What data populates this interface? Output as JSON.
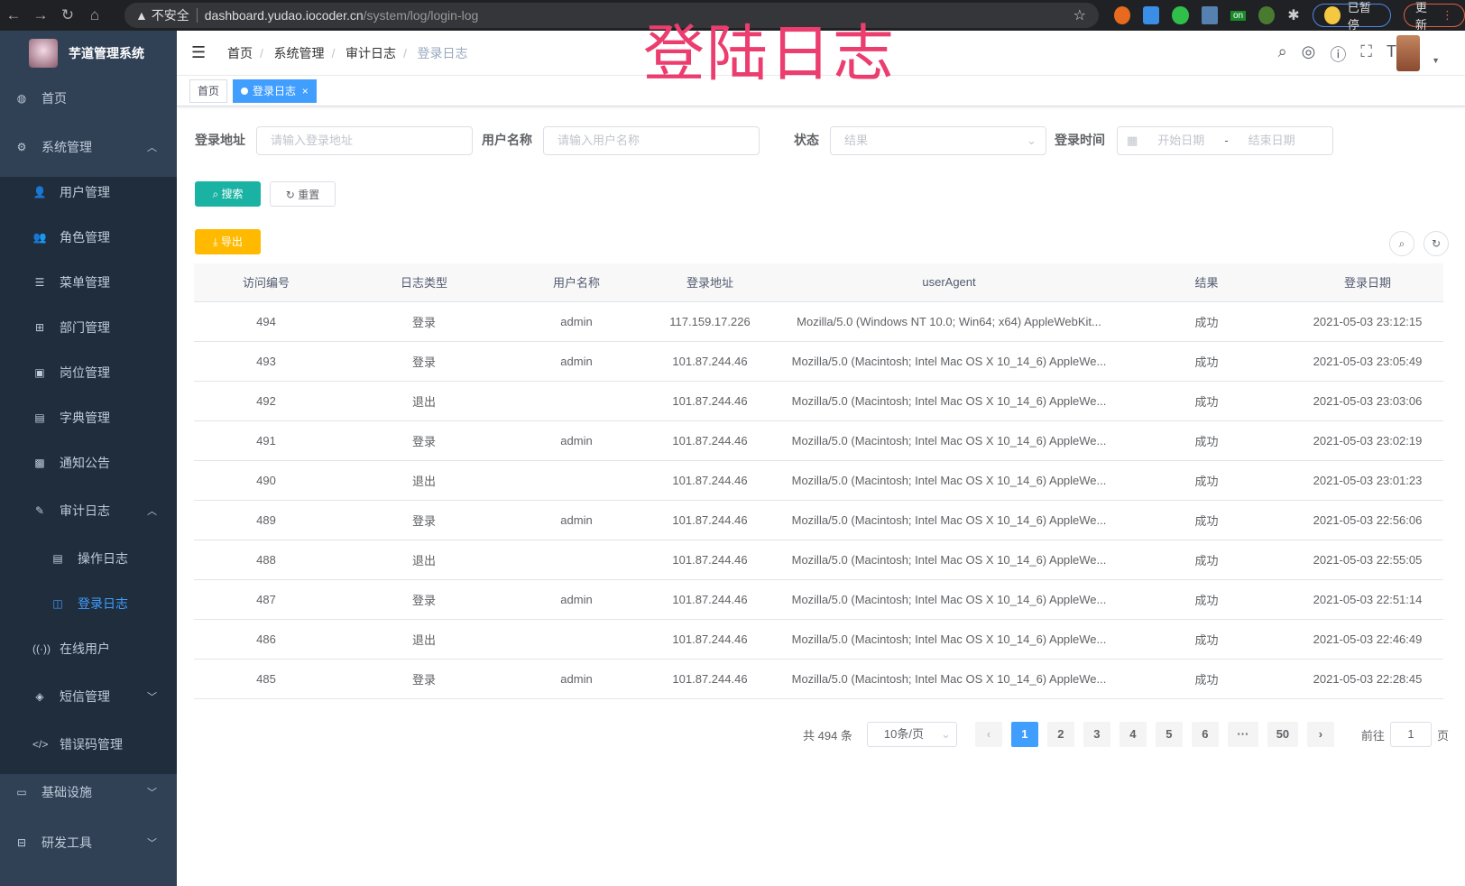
{
  "browser": {
    "warning": "不安全",
    "url_host": "dashboard.yudao.iocoder.cn",
    "url_path": "/system/log/login-log",
    "paused": "已暂停",
    "update": "更新",
    "ext_badge": "on"
  },
  "app": {
    "title": "芋道管理系统"
  },
  "overlay_title": "登陆日志",
  "sidebar": {
    "items": [
      {
        "label": "首页",
        "icon": "◍",
        "level": 0
      },
      {
        "label": "系统管理",
        "icon": "⚙",
        "level": 0,
        "arrow": "︿"
      },
      {
        "label": "用户管理",
        "icon": "👤",
        "level": 1
      },
      {
        "label": "角色管理",
        "icon": "👥",
        "level": 1
      },
      {
        "label": "菜单管理",
        "icon": "☰",
        "level": 1
      },
      {
        "label": "部门管理",
        "icon": "⊞",
        "level": 1
      },
      {
        "label": "岗位管理",
        "icon": "▣",
        "level": 1
      },
      {
        "label": "字典管理",
        "icon": "▤",
        "level": 1
      },
      {
        "label": "通知公告",
        "icon": "▩",
        "level": 1
      },
      {
        "label": "审计日志",
        "icon": "✎",
        "level": 1,
        "arrow": "︿"
      },
      {
        "label": "操作日志",
        "icon": "▤",
        "level": 2
      },
      {
        "label": "登录日志",
        "icon": "◫",
        "level": 2,
        "active": true
      },
      {
        "label": "在线用户",
        "icon": "((·))",
        "level": 1
      },
      {
        "label": "短信管理",
        "icon": "◈",
        "level": 1,
        "arrow": "﹀"
      },
      {
        "label": "错误码管理",
        "icon": "</>",
        "level": 1
      },
      {
        "label": "基础设施",
        "icon": "▭",
        "level": 0,
        "arrow": "﹀"
      },
      {
        "label": "研发工具",
        "icon": "⊟",
        "level": 0,
        "arrow": "﹀"
      }
    ]
  },
  "breadcrumb": [
    "首页",
    "系统管理",
    "审计日志",
    "登录日志"
  ],
  "tags": [
    {
      "label": "首页"
    },
    {
      "label": "登录日志",
      "close": "×"
    }
  ],
  "filters": {
    "address": {
      "label": "登录地址",
      "placeholder": "请输入登录地址"
    },
    "username": {
      "label": "用户名称",
      "placeholder": "请输入用户名称"
    },
    "status": {
      "label": "状态",
      "placeholder": "结果"
    },
    "time": {
      "label": "登录时间",
      "start": "开始日期",
      "sep": "-",
      "end": "结束日期"
    }
  },
  "buttons": {
    "search": "搜索",
    "reset": "重置",
    "export": "导出"
  },
  "colors": {
    "sidebar": "#304156",
    "submenu": "#1f2d3d",
    "primary": "#409eff",
    "search": "#13ce66",
    "export": "#ffba00"
  },
  "table": {
    "columns": [
      "访问编号",
      "日志类型",
      "用户名称",
      "登录地址",
      "userAgent",
      "结果",
      "登录日期"
    ],
    "rows": [
      [
        "494",
        "登录",
        "admin",
        "117.159.17.226",
        "Mozilla/5.0 (Windows NT 10.0; Win64; x64) AppleWebKit...",
        "成功",
        "2021-05-03 23:12:15"
      ],
      [
        "493",
        "登录",
        "admin",
        "101.87.244.46",
        "Mozilla/5.0 (Macintosh; Intel Mac OS X 10_14_6) AppleWe...",
        "成功",
        "2021-05-03 23:05:49"
      ],
      [
        "492",
        "退出",
        "",
        "101.87.244.46",
        "Mozilla/5.0 (Macintosh; Intel Mac OS X 10_14_6) AppleWe...",
        "成功",
        "2021-05-03 23:03:06"
      ],
      [
        "491",
        "登录",
        "admin",
        "101.87.244.46",
        "Mozilla/5.0 (Macintosh; Intel Mac OS X 10_14_6) AppleWe...",
        "成功",
        "2021-05-03 23:02:19"
      ],
      [
        "490",
        "退出",
        "",
        "101.87.244.46",
        "Mozilla/5.0 (Macintosh; Intel Mac OS X 10_14_6) AppleWe...",
        "成功",
        "2021-05-03 23:01:23"
      ],
      [
        "489",
        "登录",
        "admin",
        "101.87.244.46",
        "Mozilla/5.0 (Macintosh; Intel Mac OS X 10_14_6) AppleWe...",
        "成功",
        "2021-05-03 22:56:06"
      ],
      [
        "488",
        "退出",
        "",
        "101.87.244.46",
        "Mozilla/5.0 (Macintosh; Intel Mac OS X 10_14_6) AppleWe...",
        "成功",
        "2021-05-03 22:55:05"
      ],
      [
        "487",
        "登录",
        "admin",
        "101.87.244.46",
        "Mozilla/5.0 (Macintosh; Intel Mac OS X 10_14_6) AppleWe...",
        "成功",
        "2021-05-03 22:51:14"
      ],
      [
        "486",
        "退出",
        "",
        "101.87.244.46",
        "Mozilla/5.0 (Macintosh; Intel Mac OS X 10_14_6) AppleWe...",
        "成功",
        "2021-05-03 22:46:49"
      ],
      [
        "485",
        "登录",
        "admin",
        "101.87.244.46",
        "Mozilla/5.0 (Macintosh; Intel Mac OS X 10_14_6) AppleWe...",
        "成功",
        "2021-05-03 22:28:45"
      ]
    ]
  },
  "pagination": {
    "total": "共 494 条",
    "page_size": "10条/页",
    "prev": "‹",
    "pages": [
      "1",
      "2",
      "3",
      "4",
      "5",
      "6",
      "···",
      "50"
    ],
    "current": "1",
    "next": "›",
    "goto_label": "前往",
    "goto_value": "1",
    "goto_suffix": "页"
  }
}
